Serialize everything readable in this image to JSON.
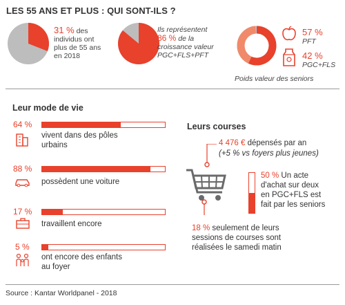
{
  "title": "LES 55 ANS ET PLUS : QUI SONT-ILS ?",
  "stats": {
    "share": {
      "pct": "31 %",
      "text": [
        "des",
        "individus ont",
        "plus de 55 ans",
        "en 2018"
      ]
    },
    "growth": {
      "intro": "Ils représentent",
      "pct": "86 %",
      "text_after": "de la",
      "lines": [
        "croissance valeur",
        "PGC+FLS+PFT"
      ]
    },
    "poids": {
      "pft_pct": "57 %",
      "pft_label": "PFT",
      "pgc_pct": "42 %",
      "pgc_label": "PGC+FLS",
      "caption": "Poids valeur des seniors"
    }
  },
  "mode_de_vie": {
    "heading": "Leur mode de vie",
    "items": [
      {
        "pct": "64 %",
        "lines": [
          "vivent dans des pôles",
          "urbains"
        ],
        "icon": "building-icon"
      },
      {
        "pct": "88 %",
        "lines": [
          "possèdent une voiture"
        ],
        "icon": "car-icon"
      },
      {
        "pct": "17 %",
        "lines": [
          "travaillent encore"
        ],
        "icon": "briefcase-icon"
      },
      {
        "pct": "5 %",
        "lines": [
          "ont encore des enfants",
          "au foyer"
        ],
        "icon": "family-icon"
      }
    ]
  },
  "courses": {
    "heading": "Leurs courses",
    "spend_value": "4 476 €",
    "spend_text": "dépensés par an",
    "spend_note": "(+5 % vs foyers plus jeunes)",
    "act_pct": "50 %",
    "act_lines": [
      "Un acte",
      "d'achat sur deux",
      "en PGC+FLS est",
      "fait par les seniors"
    ],
    "sat_pct": "18 %",
    "sat_lines": [
      "seulement de leurs",
      "sessions de courses sont",
      "réalisées le samedi matin"
    ]
  },
  "source": "Source : Kantar Worldpanel - 2018",
  "colors": {
    "accent": "#e8412c",
    "grey": "#bdbdbd",
    "text": "#333333"
  },
  "chart_data": [
    {
      "type": "pie",
      "categories": [
        "55 ans et +",
        "autres"
      ],
      "values": [
        31,
        69
      ]
    },
    {
      "type": "pie",
      "categories": [
        "seniors",
        "autres"
      ],
      "values": [
        86,
        14
      ]
    },
    {
      "type": "pie",
      "categories": [
        "PFT",
        "PGC+FLS",
        "autres"
      ],
      "values": [
        57,
        42,
        1
      ]
    },
    {
      "type": "bar",
      "categories": [
        "vivent dans des pôles urbains",
        "possèdent une voiture",
        "travaillent encore",
        "ont encore des enfants au foyer"
      ],
      "values": [
        64,
        88,
        17,
        5
      ],
      "ylim": [
        0,
        100
      ]
    },
    {
      "type": "bar",
      "categories": [
        "acte d'achat PGC+FLS"
      ],
      "values": [
        50
      ],
      "ylim": [
        0,
        100
      ]
    }
  ]
}
